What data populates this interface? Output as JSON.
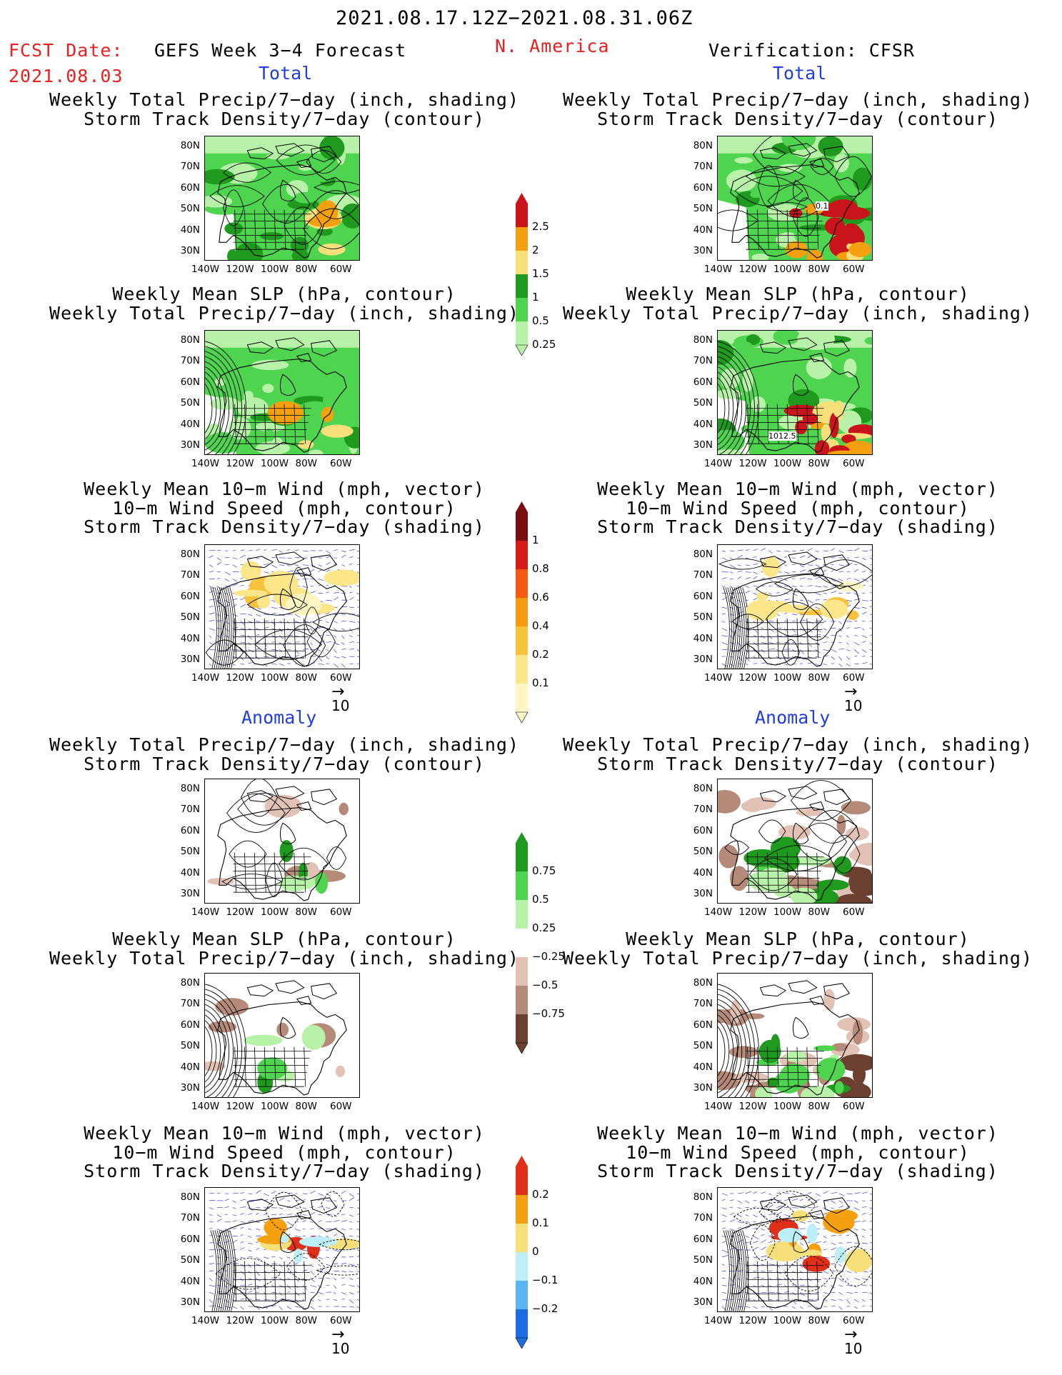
{
  "header": {
    "period": "2021.08.17.12Z−2021.08.31.06Z",
    "fcst_label": "FCST Date:",
    "fcst_date": "2021.08.03",
    "left_title": "GEFS Week 3−4 Forecast",
    "region": "N. America",
    "right_title": "Verification: CFSR"
  },
  "sections": {
    "total": "Total",
    "anomaly": "Anomaly"
  },
  "panel_titles": {
    "precip_track": [
      "Weekly Total Precip/7−day (inch, shading)",
      "Storm Track Density/7−day (contour)"
    ],
    "slp_precip": [
      "Weekly Mean SLP (hPa, contour)",
      "Weekly Total Precip/7−day (inch, shading)"
    ],
    "wind_track": [
      "Weekly Mean 10−m Wind (mph, vector)",
      "10−m Wind Speed (mph, contour)",
      "Storm Track Density/7−day (shading)"
    ]
  },
  "axes": {
    "lat": [
      "80N",
      "70N",
      "60N",
      "50N",
      "40N",
      "30N"
    ],
    "lon": [
      "140W",
      "120W",
      "100W",
      "80W",
      "60W"
    ]
  },
  "vector_ref": "10",
  "contour_labels": {
    "cfsr_track": "0.1",
    "cfsr_slp": "1012.5"
  },
  "colorbars": {
    "precip_total": {
      "labels": [
        "2.5",
        "2",
        "1.5",
        "1",
        "0.5",
        "0.25"
      ],
      "colors": [
        "#c8141a",
        "#f5a00f",
        "#f7e07a",
        "#1f9a1f",
        "#4fd44f",
        "#b8f2a8"
      ]
    },
    "track_total": {
      "labels": [
        "1",
        "0.8",
        "0.6",
        "0.4",
        "0.2",
        "0.1"
      ],
      "colors": [
        "#7a0d0d",
        "#d71a1a",
        "#f55a10",
        "#f79a10",
        "#f7c23c",
        "#fbe68a",
        "#fdf6c2"
      ]
    },
    "precip_anom": {
      "labels": [
        "0.75",
        "0.5",
        "0.25",
        "−0.25",
        "−0.5",
        "−0.75"
      ],
      "colors": [
        "#1f9a1f",
        "#4fd44f",
        "#b8f2a8",
        "#ffffff",
        "#e2c2b4",
        "#b58a78",
        "#6b4030"
      ]
    },
    "track_anom": {
      "labels": [
        "0.2",
        "0.1",
        "0",
        "−0.1",
        "−0.2"
      ],
      "colors": [
        "#e0301a",
        "#f5a00f",
        "#f7e07a",
        "#bdeff9",
        "#5ab5f0",
        "#1c6ee0"
      ]
    }
  },
  "panels": [
    {
      "id": "L1",
      "type": "precip_track",
      "kind": "fc-total-precip"
    },
    {
      "id": "R1",
      "type": "precip_track",
      "kind": "obs-total-precip"
    },
    {
      "id": "L2",
      "type": "slp_precip",
      "kind": "fc-total-slp"
    },
    {
      "id": "R2",
      "type": "slp_precip",
      "kind": "obs-total-slp"
    },
    {
      "id": "L3",
      "type": "wind_track",
      "kind": "fc-total-wind"
    },
    {
      "id": "R3",
      "type": "wind_track",
      "kind": "obs-total-wind"
    },
    {
      "id": "L4",
      "type": "precip_track",
      "kind": "fc-anom-precip"
    },
    {
      "id": "R4",
      "type": "precip_track",
      "kind": "obs-anom-precip"
    },
    {
      "id": "L5",
      "type": "slp_precip",
      "kind": "fc-anom-slp"
    },
    {
      "id": "R5",
      "type": "slp_precip",
      "kind": "obs-anom-slp"
    },
    {
      "id": "L6",
      "type": "wind_track",
      "kind": "fc-anom-wind"
    },
    {
      "id": "R6",
      "type": "wind_track",
      "kind": "obs-anom-wind"
    }
  ]
}
